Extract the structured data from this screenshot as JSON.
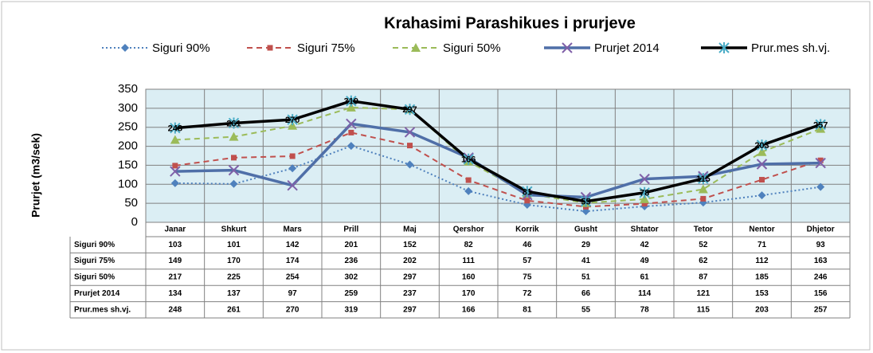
{
  "chart_data": {
    "type": "line",
    "title": "Krahasimi Parashikues i prurjeve",
    "ylabel": "Prurjet (m3/sek)",
    "categories": [
      "Janar",
      "Shkurt",
      "Mars",
      "Prill",
      "Maj",
      "Qershor",
      "Korrik",
      "Gusht",
      "Shtator",
      "Tetor",
      "Nentor",
      "Dhjetor"
    ],
    "series": [
      {
        "name": "Siguri 90%",
        "color": "#4f81bd",
        "dash": "dotted",
        "marker": "diamond",
        "values": [
          103,
          101,
          142,
          201,
          152,
          82,
          46,
          29,
          42,
          52,
          71,
          93
        ]
      },
      {
        "name": "Siguri 75%",
        "color": "#c0504d",
        "dash": "dashed",
        "marker": "square",
        "values": [
          149,
          170,
          174,
          236,
          202,
          111,
          57,
          41,
          49,
          62,
          112,
          163
        ]
      },
      {
        "name": "Siguri 50%",
        "color": "#9bbb59",
        "dash": "dashed",
        "marker": "triangle",
        "values": [
          217,
          225,
          254,
          302,
          297,
          160,
          75,
          51,
          61,
          87,
          185,
          246
        ]
      },
      {
        "name": "Prurjet 2014",
        "color": "#4f6fa8",
        "dash": "solid",
        "marker": "x",
        "values": [
          134,
          137,
          97,
          259,
          237,
          170,
          72,
          66,
          114,
          121,
          153,
          156
        ]
      },
      {
        "name": "Prur.mes sh.vj.",
        "color": "#000000",
        "dash": "solid",
        "marker": "star",
        "data_labels": true,
        "values": [
          248,
          261,
          270,
          319,
          297,
          166,
          81,
          55,
          78,
          115,
          203,
          257
        ]
      }
    ],
    "ylim": [
      0,
      350
    ],
    "yticks": [
      0,
      50,
      100,
      150,
      200,
      250,
      300,
      350
    ],
    "grid": true,
    "legend": "top",
    "data_table": true
  }
}
